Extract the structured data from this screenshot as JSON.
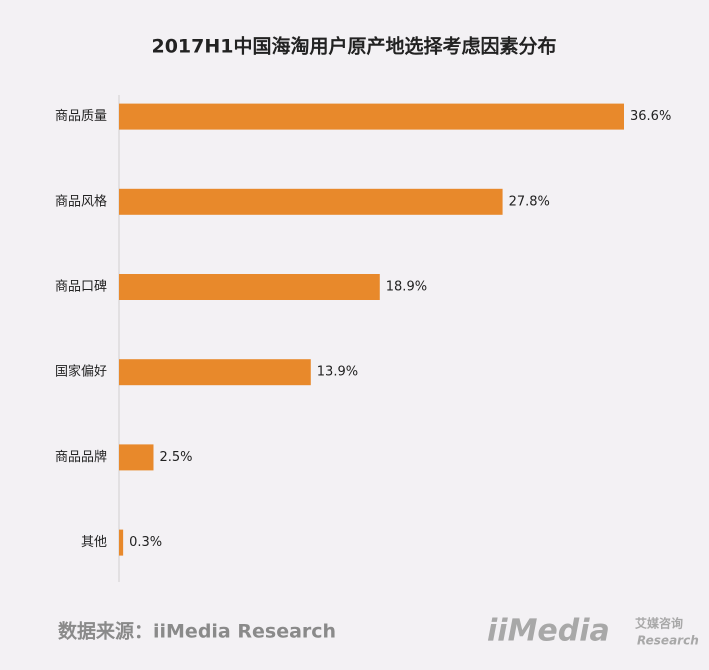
{
  "chart_data": {
    "type": "bar",
    "orientation": "horizontal",
    "title": "2017H1中国海淘用户原产地选择考虑因素分布",
    "categories": [
      "商品质量",
      "商品风格",
      "商品口碑",
      "国家偏好",
      "商品品牌",
      "其他"
    ],
    "values": [
      36.6,
      27.8,
      18.9,
      13.9,
      2.5,
      0.3
    ],
    "value_labels": [
      "36.6%",
      "27.8%",
      "18.9%",
      "13.9%",
      "2.5%",
      "0.3%"
    ],
    "color": "#e8892b",
    "source": "数据来源：iiMedia Research",
    "logo": {
      "brand": "iiMedia",
      "cn": "艾媒咨询",
      "en": "Research"
    }
  }
}
